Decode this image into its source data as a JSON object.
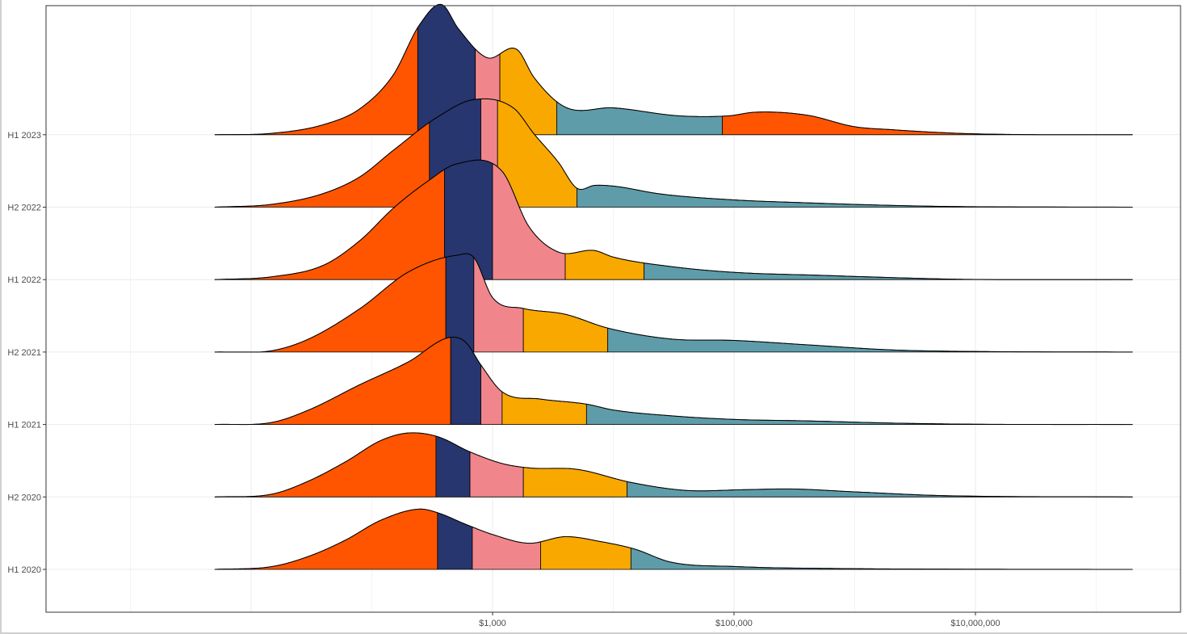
{
  "chart_data": {
    "type": "ridgeline",
    "x_scale": "log10",
    "x_tick_labels": [
      {
        "value": 1000,
        "label": "$1,000"
      },
      {
        "value": 100000,
        "label": "$100,000"
      },
      {
        "value": 10000000,
        "label": "$10,000,000"
      }
    ],
    "xlim": [
      0.2,
      500000000
    ],
    "grid": true,
    "legend": "none",
    "band_colors": [
      "#ff5500",
      "#27366e",
      "#f0868b",
      "#f9a800",
      "#5e9ca9"
    ],
    "outline_color": "#000000",
    "ridges": [
      {
        "label": "H1 2020",
        "knots": [
          [
            5,
            0
          ],
          [
            15,
            0.04
          ],
          [
            30,
            0.18
          ],
          [
            60,
            0.4
          ],
          [
            120,
            0.68
          ],
          [
            250,
            0.83
          ],
          [
            350,
            0.78
          ],
          [
            600,
            0.62
          ],
          [
            1000,
            0.48
          ],
          [
            2000,
            0.36
          ],
          [
            4000,
            0.45
          ],
          [
            8000,
            0.38
          ],
          [
            15000,
            0.28
          ],
          [
            30000,
            0.1
          ],
          [
            100000,
            0.04
          ],
          [
            1000000,
            0.01
          ],
          [
            5000000,
            0.004
          ],
          [
            200000000,
            0
          ]
        ],
        "breaks": [
          5,
          350,
          680,
          2500,
          14000,
          200000000
        ]
      },
      {
        "label": "H2 2020",
        "knots": [
          [
            5,
            0
          ],
          [
            15,
            0.04
          ],
          [
            30,
            0.22
          ],
          [
            60,
            0.48
          ],
          [
            120,
            0.78
          ],
          [
            200,
            0.88
          ],
          [
            350,
            0.83
          ],
          [
            650,
            0.62
          ],
          [
            1200,
            0.46
          ],
          [
            2000,
            0.4
          ],
          [
            5000,
            0.38
          ],
          [
            14000,
            0.2
          ],
          [
            40000,
            0.09
          ],
          [
            120000,
            0.1
          ],
          [
            300000,
            0.11
          ],
          [
            1000000,
            0.07
          ],
          [
            5000000,
            0.02
          ],
          [
            200000000,
            0
          ]
        ],
        "breaks": [
          5,
          340,
          650,
          1800,
          13000,
          200000000
        ]
      },
      {
        "label": "H1 2021",
        "knots": [
          [
            5,
            0
          ],
          [
            15,
            0.03
          ],
          [
            30,
            0.2
          ],
          [
            80,
            0.55
          ],
          [
            200,
            0.86
          ],
          [
            450,
            1.2
          ],
          [
            600,
            1.13
          ],
          [
            800,
            0.82
          ],
          [
            1200,
            0.45
          ],
          [
            2500,
            0.35
          ],
          [
            6000,
            0.28
          ],
          [
            10000,
            0.2
          ],
          [
            30000,
            0.12
          ],
          [
            100000,
            0.07
          ],
          [
            400000,
            0.05
          ],
          [
            2000000,
            0.02
          ],
          [
            10000000,
            0.004
          ],
          [
            200000000,
            0
          ]
        ],
        "breaks": [
          5,
          450,
          800,
          1200,
          6000,
          200000000
        ]
      },
      {
        "label": "H2 2021",
        "knots": [
          [
            5,
            0
          ],
          [
            15,
            0.02
          ],
          [
            30,
            0.18
          ],
          [
            80,
            0.6
          ],
          [
            200,
            1.1
          ],
          [
            500,
            1.33
          ],
          [
            700,
            1.3
          ],
          [
            1000,
            0.75
          ],
          [
            1800,
            0.6
          ],
          [
            4000,
            0.52
          ],
          [
            9000,
            0.33
          ],
          [
            30000,
            0.18
          ],
          [
            100000,
            0.16
          ],
          [
            400000,
            0.1
          ],
          [
            2000000,
            0.03
          ],
          [
            10000000,
            0.008
          ],
          [
            200000000,
            0
          ]
        ],
        "breaks": [
          5,
          410,
          700,
          1800,
          9000,
          200000000
        ]
      },
      {
        "label": "H1 2022",
        "knots": [
          [
            5,
            0
          ],
          [
            15,
            0.04
          ],
          [
            40,
            0.2
          ],
          [
            80,
            0.54
          ],
          [
            150,
            0.98
          ],
          [
            300,
            1.37
          ],
          [
            500,
            1.59
          ],
          [
            1200,
            1.49
          ],
          [
            2000,
            0.73
          ],
          [
            3500,
            0.38
          ],
          [
            7000,
            0.4
          ],
          [
            10000,
            0.31
          ],
          [
            30000,
            0.18
          ],
          [
            100000,
            0.1
          ],
          [
            500000,
            0.06
          ],
          [
            3000000,
            0.02
          ],
          [
            8000000,
            0.004
          ],
          [
            200000000,
            0
          ]
        ],
        "breaks": [
          5,
          400,
          1000,
          4000,
          18000,
          200000000
        ]
      },
      {
        "label": "H2 2022",
        "knots": [
          [
            5,
            0
          ],
          [
            15,
            0.04
          ],
          [
            40,
            0.19
          ],
          [
            80,
            0.42
          ],
          [
            150,
            0.78
          ],
          [
            350,
            1.24
          ],
          [
            700,
            1.48
          ],
          [
            1500,
            1.36
          ],
          [
            2200,
            1.01
          ],
          [
            3500,
            0.62
          ],
          [
            5000,
            0.26
          ],
          [
            7000,
            0.3
          ],
          [
            10000,
            0.29
          ],
          [
            25000,
            0.18
          ],
          [
            100000,
            0.1
          ],
          [
            400000,
            0.06
          ],
          [
            1500000,
            0.03
          ],
          [
            6000000,
            0.01
          ],
          [
            200000000,
            0
          ]
        ],
        "breaks": [
          5,
          300,
          800,
          1100,
          5000,
          200000000
        ]
      },
      {
        "label": "H1 2023",
        "knots": [
          [
            5,
            0
          ],
          [
            15,
            0.02
          ],
          [
            40,
            0.14
          ],
          [
            80,
            0.36
          ],
          [
            150,
            0.82
          ],
          [
            250,
            1.52
          ],
          [
            380,
            1.79
          ],
          [
            520,
            1.46
          ],
          [
            900,
            1.06
          ],
          [
            1600,
            1.17
          ],
          [
            2200,
            0.79
          ],
          [
            4000,
            0.38
          ],
          [
            10000,
            0.37
          ],
          [
            35000,
            0.26
          ],
          [
            90000,
            0.26
          ],
          [
            150000,
            0.31
          ],
          [
            400000,
            0.27
          ],
          [
            1000000,
            0.11
          ],
          [
            2000000,
            0.07
          ],
          [
            7000000,
            0.02
          ],
          [
            20000000,
            0.004
          ],
          [
            200000000,
            0
          ]
        ],
        "breaks": [
          5,
          240,
          720,
          1150,
          3400,
          80000,
          200000000
        ]
      }
    ]
  }
}
